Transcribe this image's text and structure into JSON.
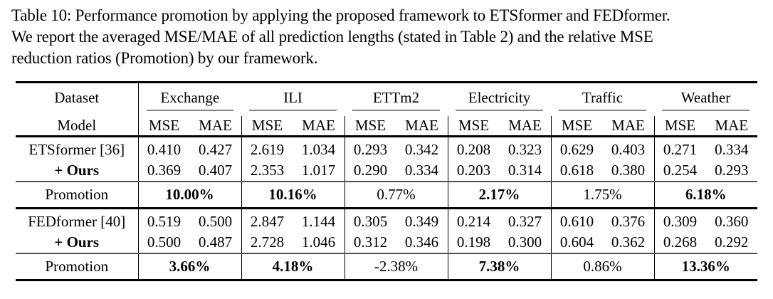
{
  "caption": {
    "lines": [
      "Table 10: Performance promotion by applying the proposed framework to ETSformer and FEDformer.",
      "We report the averaged MSE/MAE of all prediction lengths (stated in Table 2) and the relative MSE",
      "reduction ratios (Promotion) by our framework."
    ]
  },
  "table": {
    "header": {
      "dataset_label": "Dataset",
      "model_label": "Model",
      "datasets": [
        "Exchange",
        "ILI",
        "ETTm2",
        "Electricity",
        "Traffic",
        "Weather"
      ],
      "metrics": [
        "MSE",
        "MAE"
      ]
    },
    "blocks": [
      {
        "model_rows": [
          {
            "label": "ETSformer [36]",
            "label_bold": false,
            "values": [
              "0.410",
              "0.427",
              "2.619",
              "1.034",
              "0.293",
              "0.342",
              "0.208",
              "0.323",
              "0.629",
              "0.403",
              "0.271",
              "0.334"
            ]
          },
          {
            "label": "+ Ours",
            "label_bold": true,
            "values": [
              "0.369",
              "0.407",
              "2.353",
              "1.017",
              "0.290",
              "0.334",
              "0.203",
              "0.314",
              "0.618",
              "0.380",
              "0.254",
              "0.293"
            ]
          }
        ],
        "promotion": {
          "label": "Promotion",
          "values": [
            "10.00%",
            "10.16%",
            "0.77%",
            "2.17%",
            "1.75%",
            "6.18%"
          ],
          "bold": [
            true,
            true,
            false,
            true,
            false,
            true
          ]
        }
      },
      {
        "model_rows": [
          {
            "label": "FEDformer [40]",
            "label_bold": false,
            "values": [
              "0.519",
              "0.500",
              "2.847",
              "1.144",
              "0.305",
              "0.349",
              "0.214",
              "0.327",
              "0.610",
              "0.376",
              "0.309",
              "0.360"
            ]
          },
          {
            "label": "+ Ours",
            "label_bold": true,
            "values": [
              "0.500",
              "0.487",
              "2.728",
              "1.046",
              "0.312",
              "0.346",
              "0.198",
              "0.300",
              "0.604",
              "0.362",
              "0.268",
              "0.292"
            ]
          }
        ],
        "promotion": {
          "label": "Promotion",
          "values": [
            "3.66%",
            "4.18%",
            "-2.38%",
            "7.38%",
            "0.86%",
            "13.36%"
          ],
          "bold": [
            true,
            true,
            false,
            true,
            false,
            true
          ]
        }
      }
    ]
  }
}
